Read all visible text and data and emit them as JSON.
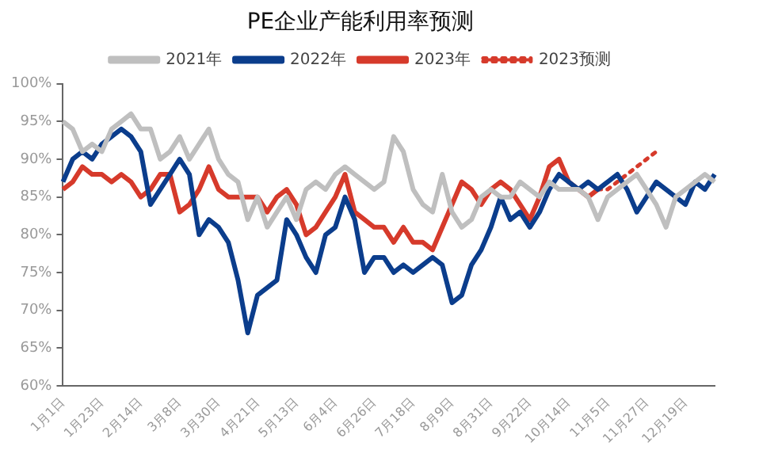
{
  "chart_data": {
    "type": "line",
    "title": "PE企业产能利用率预测",
    "legend": "top",
    "categories": [
      "1月1日",
      null,
      null,
      null,
      "1月23日",
      null,
      null,
      null,
      "2月14日",
      null,
      null,
      null,
      "3月8日",
      null,
      null,
      null,
      "3月30日",
      null,
      null,
      null,
      "4月21日",
      null,
      null,
      null,
      "5月13日",
      null,
      null,
      null,
      "6月4日",
      null,
      null,
      null,
      "6月26日",
      null,
      null,
      null,
      "7月18日",
      null,
      null,
      null,
      "8月9日",
      null,
      null,
      null,
      "8月31日",
      null,
      null,
      null,
      "9月22日",
      null,
      null,
      null,
      "10月14日",
      null,
      null,
      null,
      "11月5日",
      null,
      null,
      null,
      "11月27日",
      null,
      null,
      null,
      "12月19日",
      null,
      null,
      null
    ],
    "ylim": [
      60,
      100
    ],
    "yticks": [
      {
        "value": 60,
        "label": "60%"
      },
      {
        "value": 65,
        "label": "65%"
      },
      {
        "value": 70,
        "label": "70%"
      },
      {
        "value": 75,
        "label": "75%"
      },
      {
        "value": 80,
        "label": "80%"
      },
      {
        "value": 85,
        "label": "85%"
      },
      {
        "value": 90,
        "label": "90%"
      },
      {
        "value": 95,
        "label": "95%"
      },
      {
        "value": 100,
        "label": "100%"
      }
    ],
    "series": [
      {
        "name": "2021年",
        "color": "#bfbfbf",
        "line_style": "solid",
        "values": [
          95,
          94,
          91,
          92,
          91,
          94,
          95,
          96,
          94,
          94,
          90,
          91,
          93,
          90,
          92,
          94,
          90,
          88,
          87,
          82,
          85,
          81,
          83,
          85,
          82,
          86,
          87,
          86,
          88,
          89,
          88,
          87,
          86,
          87,
          93,
          91,
          86,
          84,
          83,
          88,
          83,
          81,
          82,
          85,
          86,
          85,
          85,
          87,
          86,
          85,
          87,
          86,
          86,
          86,
          85,
          82,
          85,
          86,
          87,
          88,
          86,
          84,
          81,
          85,
          86,
          87,
          88,
          87
        ]
      },
      {
        "name": "2022年",
        "color": "#0b3d8c",
        "line_style": "solid",
        "values": [
          87,
          90,
          91,
          90,
          92,
          93,
          94,
          93,
          91,
          84,
          86,
          88,
          90,
          88,
          80,
          82,
          81,
          79,
          74,
          67,
          72,
          73,
          74,
          82,
          80,
          77,
          75,
          80,
          81,
          85,
          82,
          75,
          77,
          77,
          75,
          76,
          75,
          76,
          77,
          76,
          71,
          72,
          76,
          78,
          81,
          85,
          82,
          83,
          81,
          83,
          86,
          88,
          87,
          86,
          87,
          86,
          87,
          88,
          86,
          83,
          85,
          87,
          86,
          85,
          84,
          87,
          86,
          88
        ]
      },
      {
        "name": "2023年",
        "color": "#d63a2b",
        "line_style": "solid",
        "values": [
          86,
          87,
          89,
          88,
          88,
          87,
          88,
          87,
          85,
          86,
          88,
          88,
          83,
          84,
          86,
          89,
          86,
          85,
          85,
          85,
          85,
          83,
          85,
          86,
          84,
          80,
          81,
          83,
          85,
          88,
          83,
          82,
          81,
          81,
          79,
          81,
          79,
          79,
          78,
          81,
          84,
          87,
          86,
          84,
          86,
          87,
          86,
          84,
          82,
          85,
          89,
          90,
          87,
          86,
          85,
          86,
          null,
          null,
          null,
          null,
          null,
          null,
          null,
          null,
          null,
          null,
          null,
          null
        ]
      },
      {
        "name": "2023预测",
        "color": "#d63a2b",
        "line_style": "dotted",
        "values": [
          null,
          null,
          null,
          null,
          null,
          null,
          null,
          null,
          null,
          null,
          null,
          null,
          null,
          null,
          null,
          null,
          null,
          null,
          null,
          null,
          null,
          null,
          null,
          null,
          null,
          null,
          null,
          null,
          null,
          null,
          null,
          null,
          null,
          null,
          null,
          null,
          null,
          null,
          null,
          null,
          null,
          null,
          null,
          null,
          null,
          null,
          null,
          null,
          null,
          null,
          null,
          null,
          null,
          null,
          null,
          86,
          86,
          87,
          88,
          89,
          90,
          91,
          null,
          null,
          null,
          null,
          null,
          null
        ]
      }
    ]
  }
}
